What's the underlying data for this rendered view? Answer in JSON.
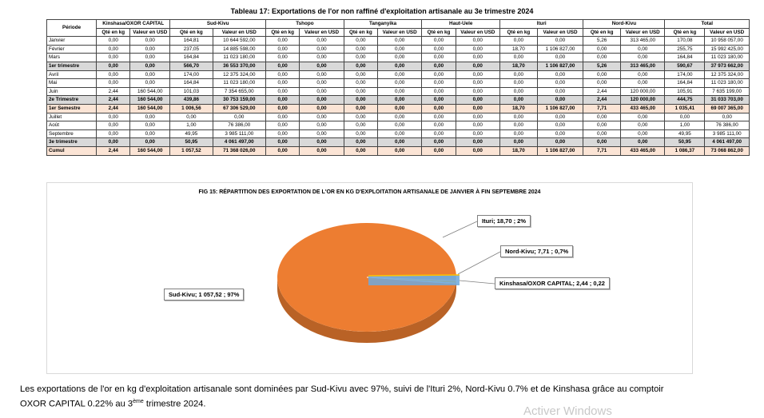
{
  "table_title": "Tableau 17: Exportations de l'or non raffiné d'exploitation artisanale au 3e trimestre 2024",
  "header": {
    "period_label": "Période",
    "regions": [
      "Kinshasa/OXOR CAPITAL",
      "Sud-Kivu",
      "Tshopo",
      "Tanganyika",
      "Haut-Uele",
      "Ituri",
      "Nord-Kivu",
      "Total"
    ],
    "qty_label": "Qté en kg",
    "val_label": "Valeur en USD"
  },
  "rows": [
    {
      "type": "month",
      "cells": [
        "Janvier",
        "0,00",
        "0,00",
        "164,81",
        "10 644 592,00",
        "0,00",
        "0,00",
        "0,00",
        "0,00",
        "0,00",
        "0,00",
        "0,00",
        "0,00",
        "5,26",
        "313 465,00",
        "170,08",
        "10 958 057,00"
      ]
    },
    {
      "type": "month",
      "cells": [
        "Février",
        "0,00",
        "0,00",
        "237,05",
        "14 885 598,00",
        "0,00",
        "0,00",
        "0,00",
        "0,00",
        "0,00",
        "0,00",
        "18,70",
        "1 106 827,00",
        "0,00",
        "0,00",
        "255,75",
        "15 992 425,00"
      ]
    },
    {
      "type": "month",
      "cells": [
        "Mars",
        "0,00",
        "0,00",
        "164,84",
        "11 023 180,00",
        "0,00",
        "0,00",
        "0,00",
        "0,00",
        "0,00",
        "0,00",
        "0,00",
        "0,00",
        "0,00",
        "0,00",
        "164,84",
        "11 023 180,00"
      ]
    },
    {
      "type": "sub",
      "cells": [
        "1er trimestre",
        "0,00",
        "0,00",
        "566,70",
        "36 553 370,00",
        "0,00",
        "0,00",
        "0,00",
        "0,00",
        "0,00",
        "0,00",
        "18,70",
        "1 106 827,00",
        "5,26",
        "313 465,00",
        "590,67",
        "37 973 662,00"
      ]
    },
    {
      "type": "month",
      "cells": [
        "Avril",
        "0,00",
        "0,00",
        "174,00",
        "12 375 324,00",
        "0,00",
        "0,00",
        "0,00",
        "0,00",
        "0,00",
        "0,00",
        "0,00",
        "0,00",
        "0,00",
        "0,00",
        "174,00",
        "12 375 324,00"
      ]
    },
    {
      "type": "month",
      "cells": [
        "Mai",
        "0,00",
        "0,00",
        "164,84",
        "11 023 180,00",
        "0,00",
        "0,00",
        "0,00",
        "0,00",
        "0,00",
        "0,00",
        "0,00",
        "0,00",
        "0,00",
        "0,00",
        "164,84",
        "11 023 180,00"
      ]
    },
    {
      "type": "month",
      "cells": [
        "Juin",
        "2,44",
        "160 544,00",
        "101,03",
        "7 354 655,00",
        "0,00",
        "0,00",
        "0,00",
        "0,00",
        "0,00",
        "0,00",
        "0,00",
        "0,00",
        "2,44",
        "120 000,00",
        "105,91",
        "7 635 199,00"
      ]
    },
    {
      "type": "sub",
      "cells": [
        "2e Trimestre",
        "2,44",
        "160 544,00",
        "439,86",
        "30 753 159,00",
        "0,00",
        "0,00",
        "0,00",
        "0,00",
        "0,00",
        "0,00",
        "0,00",
        "0,00",
        "2,44",
        "120 000,00",
        "444,75",
        "31 033 703,00"
      ]
    },
    {
      "type": "sub pink",
      "cells": [
        "1er Semestre",
        "2,44",
        "160 544,00",
        "1 006,56",
        "67 306 529,00",
        "0,00",
        "0,00",
        "0,00",
        "0,00",
        "0,00",
        "0,00",
        "18,70",
        "1 106 827,00",
        "7,71",
        "433 465,00",
        "1 035,41",
        "69 007 365,00"
      ]
    },
    {
      "type": "month",
      "cells": [
        "Juillet",
        "0,00",
        "0,00",
        "0,00",
        "0,00",
        "0,00",
        "0,00",
        "0,00",
        "0,00",
        "0,00",
        "0,00",
        "0,00",
        "0,00",
        "0,00",
        "0,00",
        "0,00",
        "0,00"
      ]
    },
    {
      "type": "month",
      "cells": [
        "Août",
        "0,00",
        "0,00",
        "1,00",
        "76 386,00",
        "0,00",
        "0,00",
        "0,00",
        "0,00",
        "0,00",
        "0,00",
        "0,00",
        "0,00",
        "0,00",
        "0,00",
        "1,00",
        "76 386,00"
      ]
    },
    {
      "type": "month",
      "cells": [
        "Septembre",
        "0,00",
        "0,00",
        "49,95",
        "3 985 111,00",
        "0,00",
        "0,00",
        "0,00",
        "0,00",
        "0,00",
        "0,00",
        "0,00",
        "0,00",
        "0,00",
        "0,00",
        "49,95",
        "3 985 111,00"
      ]
    },
    {
      "type": "sub",
      "cells": [
        "3e trimestre",
        "0,00",
        "0,00",
        "50,95",
        "4 061 497,00",
        "0,00",
        "0,00",
        "0,00",
        "0,00",
        "0,00",
        "0,00",
        "0,00",
        "0,00",
        "0,00",
        "0,00",
        "50,95",
        "4 061 497,00"
      ]
    },
    {
      "type": "cumul",
      "cells": [
        "Cumul",
        "2,44",
        "160 544,00",
        "1 057,52",
        "71 368 026,00",
        "0,00",
        "0,00",
        "0,00",
        "0,00",
        "0,00",
        "0,00",
        "18,70",
        "1 106 827,00",
        "7,71",
        "433 465,00",
        "1 086,37",
        "73 068 862,00"
      ]
    }
  ],
  "chart_data": {
    "type": "pie",
    "title": "FIG 15: RÉPARTITION DES EXPORTATION DE L'OR EN KG D'EXPLOITATION ARTISANALE DE JANVIER À FIN SEPTEMBRE 2024",
    "slices": [
      {
        "label": "Sud-Kivu; 1 057,52 ; 97%",
        "value": 1057.52,
        "color": "#ed7d31"
      },
      {
        "label": "Ituri;  18,70 ; 2%",
        "value": 18.7,
        "color": "#a5a5a5"
      },
      {
        "label": "Nord-Kivu;  7,71 ; 0,7%",
        "value": 7.71,
        "color": "#ffc000"
      },
      {
        "label": "Kinshasa/OXOR CAPITAL;  2,44 ; 0,22",
        "value": 2.44,
        "color": "#5b9bd5"
      }
    ]
  },
  "caption": {
    "line1": "Les exportations de l'or en kg d'exploitation artisanale sont dominées par Sud-Kivu avec 97%, suivi de l'Ituri 2%, Nord-Kivu 0.7% et de Kinshasa grâce au comptoir",
    "line2_a": "OXOR CAPITAL  0.22%  au 3",
    "line2_sup": "ème",
    "line2_b": "  trimestre 2024."
  },
  "watermark": "Activer Windows"
}
